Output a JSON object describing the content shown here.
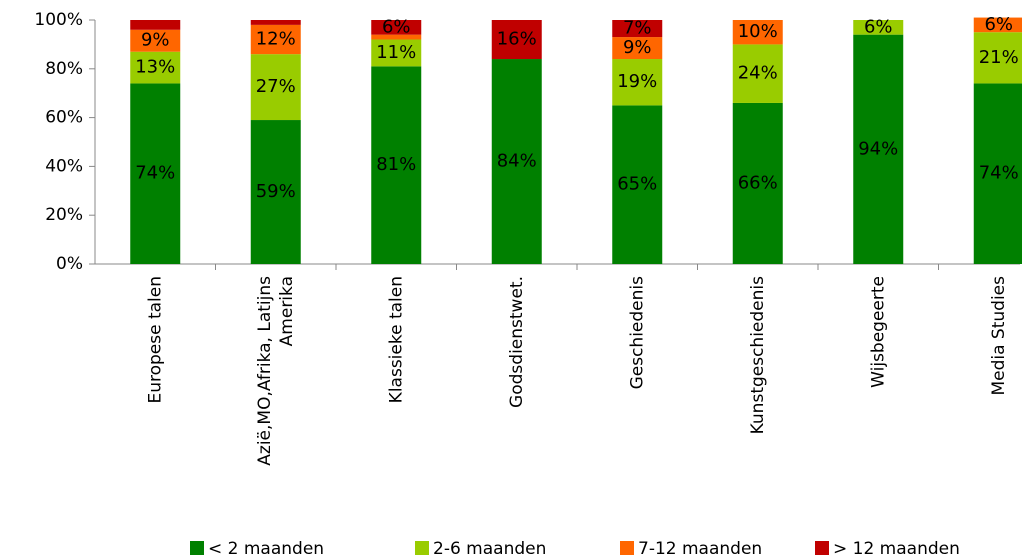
{
  "chart_data": {
    "type": "stacked_bar",
    "categories": [
      "Europese talen",
      "Azië,MO,Afrika, Latijns Amerika",
      "Klassieke talen",
      "Godsdienstwet.",
      "Geschiedenis",
      "Kunstgeschiedenis",
      "Wijsbegeerte",
      "Media Studies"
    ],
    "series": [
      {
        "name": "< 2 maanden",
        "color": "#008000",
        "values": [
          74,
          59,
          81,
          84,
          65,
          66,
          94,
          74
        ],
        "value_labels": [
          "74%",
          "59%",
          "81%",
          "84%",
          "65%",
          "66%",
          "94%",
          "74%"
        ]
      },
      {
        "name": "2-6 maanden",
        "color": "#99cc00",
        "values": [
          13,
          27,
          11,
          0,
          19,
          24,
          6,
          21
        ],
        "value_labels": [
          "13%",
          "27%",
          "11%",
          null,
          "19%",
          "24%",
          "6%",
          "21%"
        ]
      },
      {
        "name": "7-12 maanden",
        "color": "#ff6600",
        "values": [
          9,
          12,
          2,
          0,
          9,
          10,
          0,
          6
        ],
        "value_labels": [
          "9%",
          "12%",
          null,
          null,
          "9%",
          "10%",
          null,
          "6%"
        ]
      },
      {
        "name": "> 12 maanden",
        "color": "#c00000",
        "values": [
          4,
          2,
          6,
          16,
          7,
          0,
          0,
          0
        ],
        "value_labels": [
          null,
          null,
          "6%",
          "16%",
          "7%",
          null,
          null,
          null
        ]
      }
    ],
    "ylim": [
      0,
      100
    ],
    "yticks": [
      {
        "value": 0,
        "label": "0%"
      },
      {
        "value": 20,
        "label": "20%"
      },
      {
        "value": 40,
        "label": "40%"
      },
      {
        "value": 60,
        "label": "60%"
      },
      {
        "value": 80,
        "label": "80%"
      },
      {
        "value": 100,
        "label": "100%"
      }
    ],
    "legend": "bottom"
  }
}
